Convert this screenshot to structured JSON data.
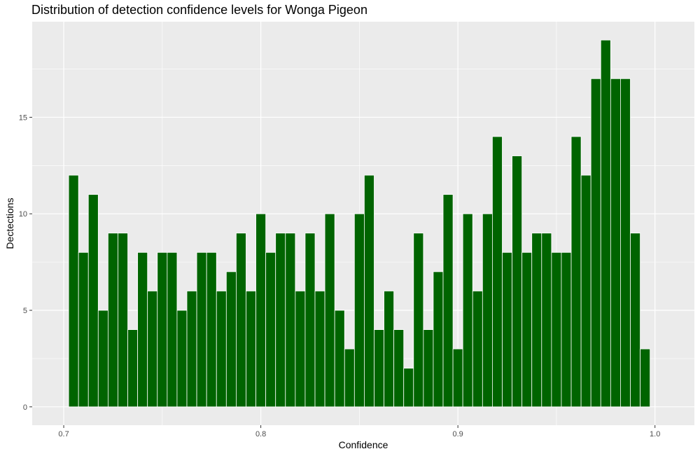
{
  "chart_data": {
    "type": "bar",
    "title": "Distribution of detection confidence levels for Wonga Pigeon",
    "xlabel": "Confidence",
    "ylabel": "Dectections",
    "x_ticks": [
      "0.7",
      "0.8",
      "0.9",
      "1.0"
    ],
    "y_ticks": [
      "0",
      "5",
      "10",
      "15"
    ],
    "xlim": [
      0.684,
      1.02
    ],
    "ylim": [
      -0.95,
      19.95
    ],
    "bin_start": 0.7025,
    "bin_width": 0.005,
    "values": [
      12,
      8,
      11,
      5,
      9,
      9,
      4,
      8,
      6,
      8,
      8,
      5,
      6,
      8,
      8,
      6,
      7,
      9,
      6,
      10,
      8,
      9,
      9,
      6,
      9,
      6,
      10,
      5,
      3,
      10,
      12,
      4,
      6,
      4,
      2,
      9,
      4,
      7,
      11,
      3,
      10,
      6,
      10,
      14,
      8,
      13,
      8,
      9,
      9,
      8,
      8,
      14,
      12,
      17,
      19,
      17,
      17,
      9,
      3
    ],
    "grid": true,
    "panel_color": "#ebebeb",
    "bar_color": "#006400",
    "bar_outline": "#ffffff"
  }
}
